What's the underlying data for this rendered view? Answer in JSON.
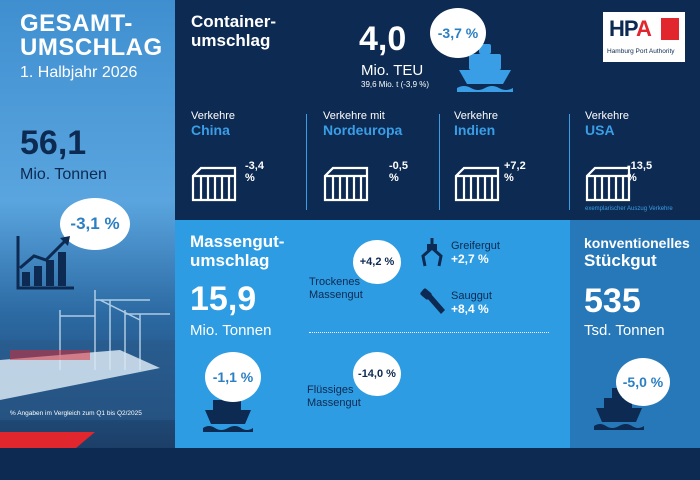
{
  "total": {
    "title_line1": "GESAMT-",
    "title_line2": "UMSCHLAG",
    "period": "1. Halbjahr 2026",
    "value": "56,1",
    "unit": "Mio. Tonnen",
    "change": "-3,1 %",
    "footnote": "% Angaben im Vergleich zum Q1 bis Q2/2025"
  },
  "container": {
    "title_line1": "Container-",
    "title_line2": "umschlag",
    "value": "4,0",
    "unit": "Mio. TEU",
    "sub": "39,6 Mio. t (-3,9 %)",
    "change": "-3,7 %",
    "routes": [
      {
        "label": "Verkehre",
        "dest": "China",
        "change": "-3,4 %"
      },
      {
        "label": "Verkehre mit",
        "dest": "Nordeuropa",
        "change": "-0,5 %"
      },
      {
        "label": "Verkehre",
        "dest": "Indien",
        "change": "+7,2 %"
      },
      {
        "label": "Verkehre",
        "dest": "USA",
        "change": "-13,5 %"
      }
    ],
    "routes_note": "exemplarischer Auszug Verkehre"
  },
  "logo": {
    "letters": "HP",
    "letter_a": "A",
    "name": "Hamburg Port Authority"
  },
  "bulk": {
    "title_line1": "Massengut-",
    "title_line2": "umschlag",
    "value": "15,9",
    "unit": "Mio. Tonnen",
    "change": "-1,1 %",
    "dry": {
      "line1": "Trockenes",
      "line2": "Massengut",
      "change": "+4,2 %"
    },
    "liquid": {
      "line1": "Flüssiges",
      "line2": "Massengut",
      "change": "-14,0 %"
    },
    "grab": {
      "label": "Greifergut",
      "change": "+2,7 %"
    },
    "suction": {
      "label": "Sauggut",
      "change": "+8,4 %"
    }
  },
  "general": {
    "title_line1": "konventionelles",
    "title_line2": "Stückgut",
    "value": "535",
    "unit": "Tsd. Tonnen",
    "change": "-5,0 %"
  },
  "colors": {
    "navy": "#0d2a52",
    "blue": "#2e9ce2",
    "accent": "#3a9ee6",
    "red": "#e1262d"
  }
}
